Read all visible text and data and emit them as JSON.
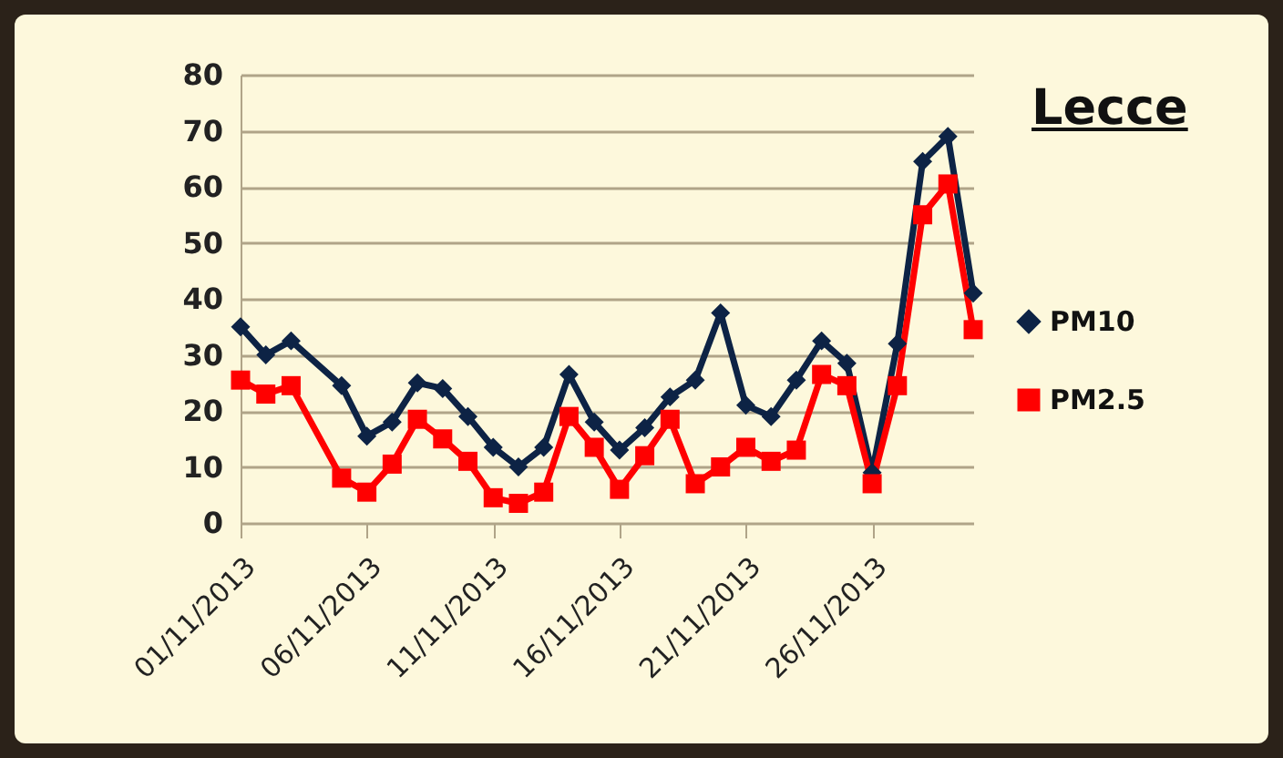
{
  "chart_data": {
    "type": "line",
    "title": "Lecce",
    "x": [
      "2013-11-01",
      "2013-11-02",
      "2013-11-03",
      "2013-11-05",
      "2013-11-06",
      "2013-11-07",
      "2013-11-08",
      "2013-11-09",
      "2013-11-10",
      "2013-11-11",
      "2013-11-12",
      "2013-11-13",
      "2013-11-14",
      "2013-11-15",
      "2013-11-16",
      "2013-11-17",
      "2013-11-18",
      "2013-11-19",
      "2013-11-20",
      "2013-11-21",
      "2013-11-22",
      "2013-11-23",
      "2013-11-24",
      "2013-11-25",
      "2013-11-26",
      "2013-11-27",
      "2013-11-28",
      "2013-11-29",
      "2013-11-30"
    ],
    "series": [
      {
        "name": "PM10",
        "color": "#0d2345",
        "marker": "diamond",
        "values": [
          35,
          30,
          32.5,
          24.5,
          15.5,
          18,
          25,
          24,
          19,
          13.5,
          10,
          13.5,
          26.5,
          18,
          13,
          17,
          22.5,
          25.5,
          37.5,
          21,
          19,
          25.5,
          32.5,
          28.5,
          9,
          32,
          64.5,
          69,
          41
        ]
      },
      {
        "name": "PM2.5",
        "color": "#ff0000",
        "marker": "square",
        "values": [
          25.5,
          23,
          24.5,
          8,
          5.5,
          10.5,
          18.5,
          15,
          11,
          4.5,
          3.5,
          5.5,
          19,
          13.5,
          6,
          12,
          18.5,
          7,
          10,
          13.5,
          11,
          13,
          26.5,
          24.5,
          7,
          24.5,
          55,
          60.5,
          34.5
        ]
      }
    ],
    "xlim": [
      "2013-11-01",
      "2013-11-30"
    ],
    "xticks": [
      {
        "value": "2013-11-01",
        "label": "01/11/2013"
      },
      {
        "value": "2013-11-06",
        "label": "06/11/2013"
      },
      {
        "value": "2013-11-11",
        "label": "11/11/2013"
      },
      {
        "value": "2013-11-16",
        "label": "16/11/2013"
      },
      {
        "value": "2013-11-21",
        "label": "21/11/2013"
      },
      {
        "value": "2013-11-26",
        "label": "26/11/2013"
      }
    ],
    "ylim": [
      0,
      80
    ],
    "yticks": [
      0,
      10,
      20,
      30,
      40,
      50,
      60,
      70,
      80
    ],
    "grid": "y",
    "legend": "right",
    "line_style": "solid"
  }
}
